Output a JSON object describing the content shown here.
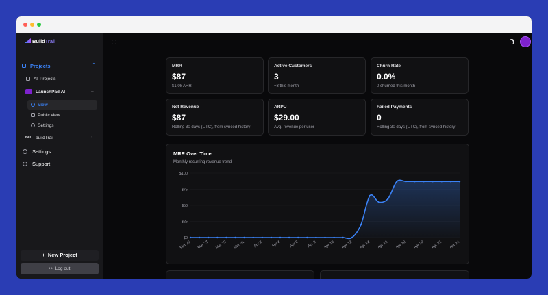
{
  "sidebar": {
    "brand_a": "Build",
    "brand_b": "Trail",
    "projects_label": "Projects",
    "all_projects": "All Projects",
    "project": "LaunchPad AI",
    "project_nav": [
      "View",
      "Public view",
      "Settings"
    ],
    "other_badge": "BU",
    "other_project": "buildTrail",
    "nav": [
      "Settings",
      "Support"
    ],
    "new_project": "New Project",
    "log_out": "Log out"
  },
  "cards": [
    {
      "label": "MRR",
      "value": "$87",
      "note": "$1.0k ARR"
    },
    {
      "label": "Active Customers",
      "value": "3",
      "note": "+3 this month"
    },
    {
      "label": "Churn Rate",
      "value": "0.0%",
      "note": "0 churned this month"
    },
    {
      "label": "Net Revenue",
      "value": "$87",
      "note": "Rolling 30 days (UTC), from synced history"
    },
    {
      "label": "ARPU",
      "value": "$29.00",
      "note": "Avg. revenue per user"
    },
    {
      "label": "Failed Payments",
      "value": "0",
      "note": "Rolling 30 days (UTC), from synced history"
    }
  ],
  "mrr_chart": {
    "type": "line",
    "title": "MRR Over Time",
    "subtitle": "Monthly recurring revenue trend",
    "categories": [
      "Mar 25",
      null,
      "Mar 27",
      null,
      "Mar 29",
      null,
      "Mar 31",
      null,
      "Apr 2",
      null,
      "Apr 4",
      null,
      "Apr 6",
      null,
      "Apr 8",
      null,
      "Apr 10",
      null,
      "Apr 12",
      null,
      "Apr 14",
      null,
      "Apr 16",
      null,
      "Apr 18",
      null,
      "Apr 20",
      null,
      "Apr 22",
      null,
      "Apr 24"
    ],
    "values": [
      0,
      0,
      0,
      0,
      0,
      0,
      0,
      0,
      0,
      0,
      0,
      0,
      0,
      0,
      0,
      0,
      0,
      0,
      0,
      20,
      65,
      55,
      60,
      87,
      87,
      87,
      87,
      87,
      87,
      87,
      87
    ],
    "color": "#3b82f6",
    "ylim": [
      0,
      100
    ],
    "yticks": [
      {
        "value": 0,
        "label": "$0"
      },
      {
        "value": 25,
        "label": "$25"
      },
      {
        "value": 50,
        "label": "$50"
      },
      {
        "value": 75,
        "label": "$75"
      },
      {
        "value": 100,
        "label": "$100"
      }
    ],
    "grid": true
  }
}
